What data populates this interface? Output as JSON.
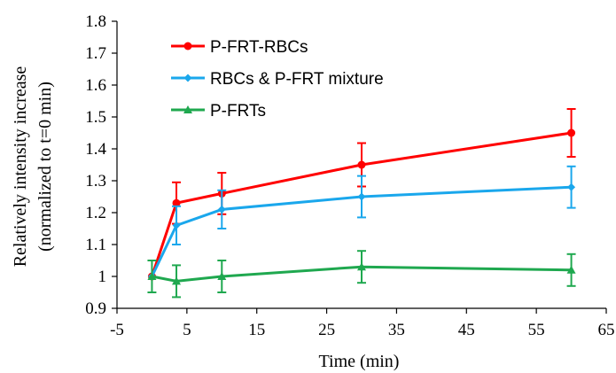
{
  "chart_data": {
    "type": "line",
    "title": "",
    "xlabel": "Time (min)",
    "ylabel_line1": "Relatively intensity increase",
    "ylabel_line2": "(normalized to t=0 min)",
    "xlim": [
      -5,
      65
    ],
    "ylim": [
      0.9,
      1.8
    ],
    "xticks": [
      -5,
      5,
      15,
      25,
      35,
      45,
      55,
      65
    ],
    "yticks": [
      0.9,
      1,
      1.1,
      1.2,
      1.3,
      1.4,
      1.5,
      1.6,
      1.7,
      1.8
    ],
    "ytick_labels": [
      "0.9",
      "1",
      "1.1",
      "1.2",
      "1.3",
      "1.4",
      "1.5",
      "1.6",
      "1.7",
      "1.8"
    ],
    "grid": false,
    "legend_position": "top-left",
    "x": [
      0,
      3.5,
      10,
      30,
      60
    ],
    "series": [
      {
        "name": "P-FRT-RBCs",
        "color": "#ff0000",
        "marker": "circle",
        "values": [
          1.0,
          1.23,
          1.26,
          1.35,
          1.45
        ],
        "errors": [
          0.0,
          0.065,
          0.065,
          0.068,
          0.075
        ]
      },
      {
        "name": "RBCs & P-FRT mixture",
        "color": "#1aa7ec",
        "marker": "diamond",
        "values": [
          1.0,
          1.16,
          1.21,
          1.25,
          1.28
        ],
        "errors": [
          0.0,
          0.06,
          0.06,
          0.065,
          0.065
        ]
      },
      {
        "name": "P-FRTs",
        "color": "#1fa84f",
        "marker": "triangle",
        "values": [
          1.0,
          0.985,
          1.0,
          1.03,
          1.02
        ],
        "errors": [
          0.05,
          0.05,
          0.05,
          0.05,
          0.05
        ]
      }
    ]
  }
}
